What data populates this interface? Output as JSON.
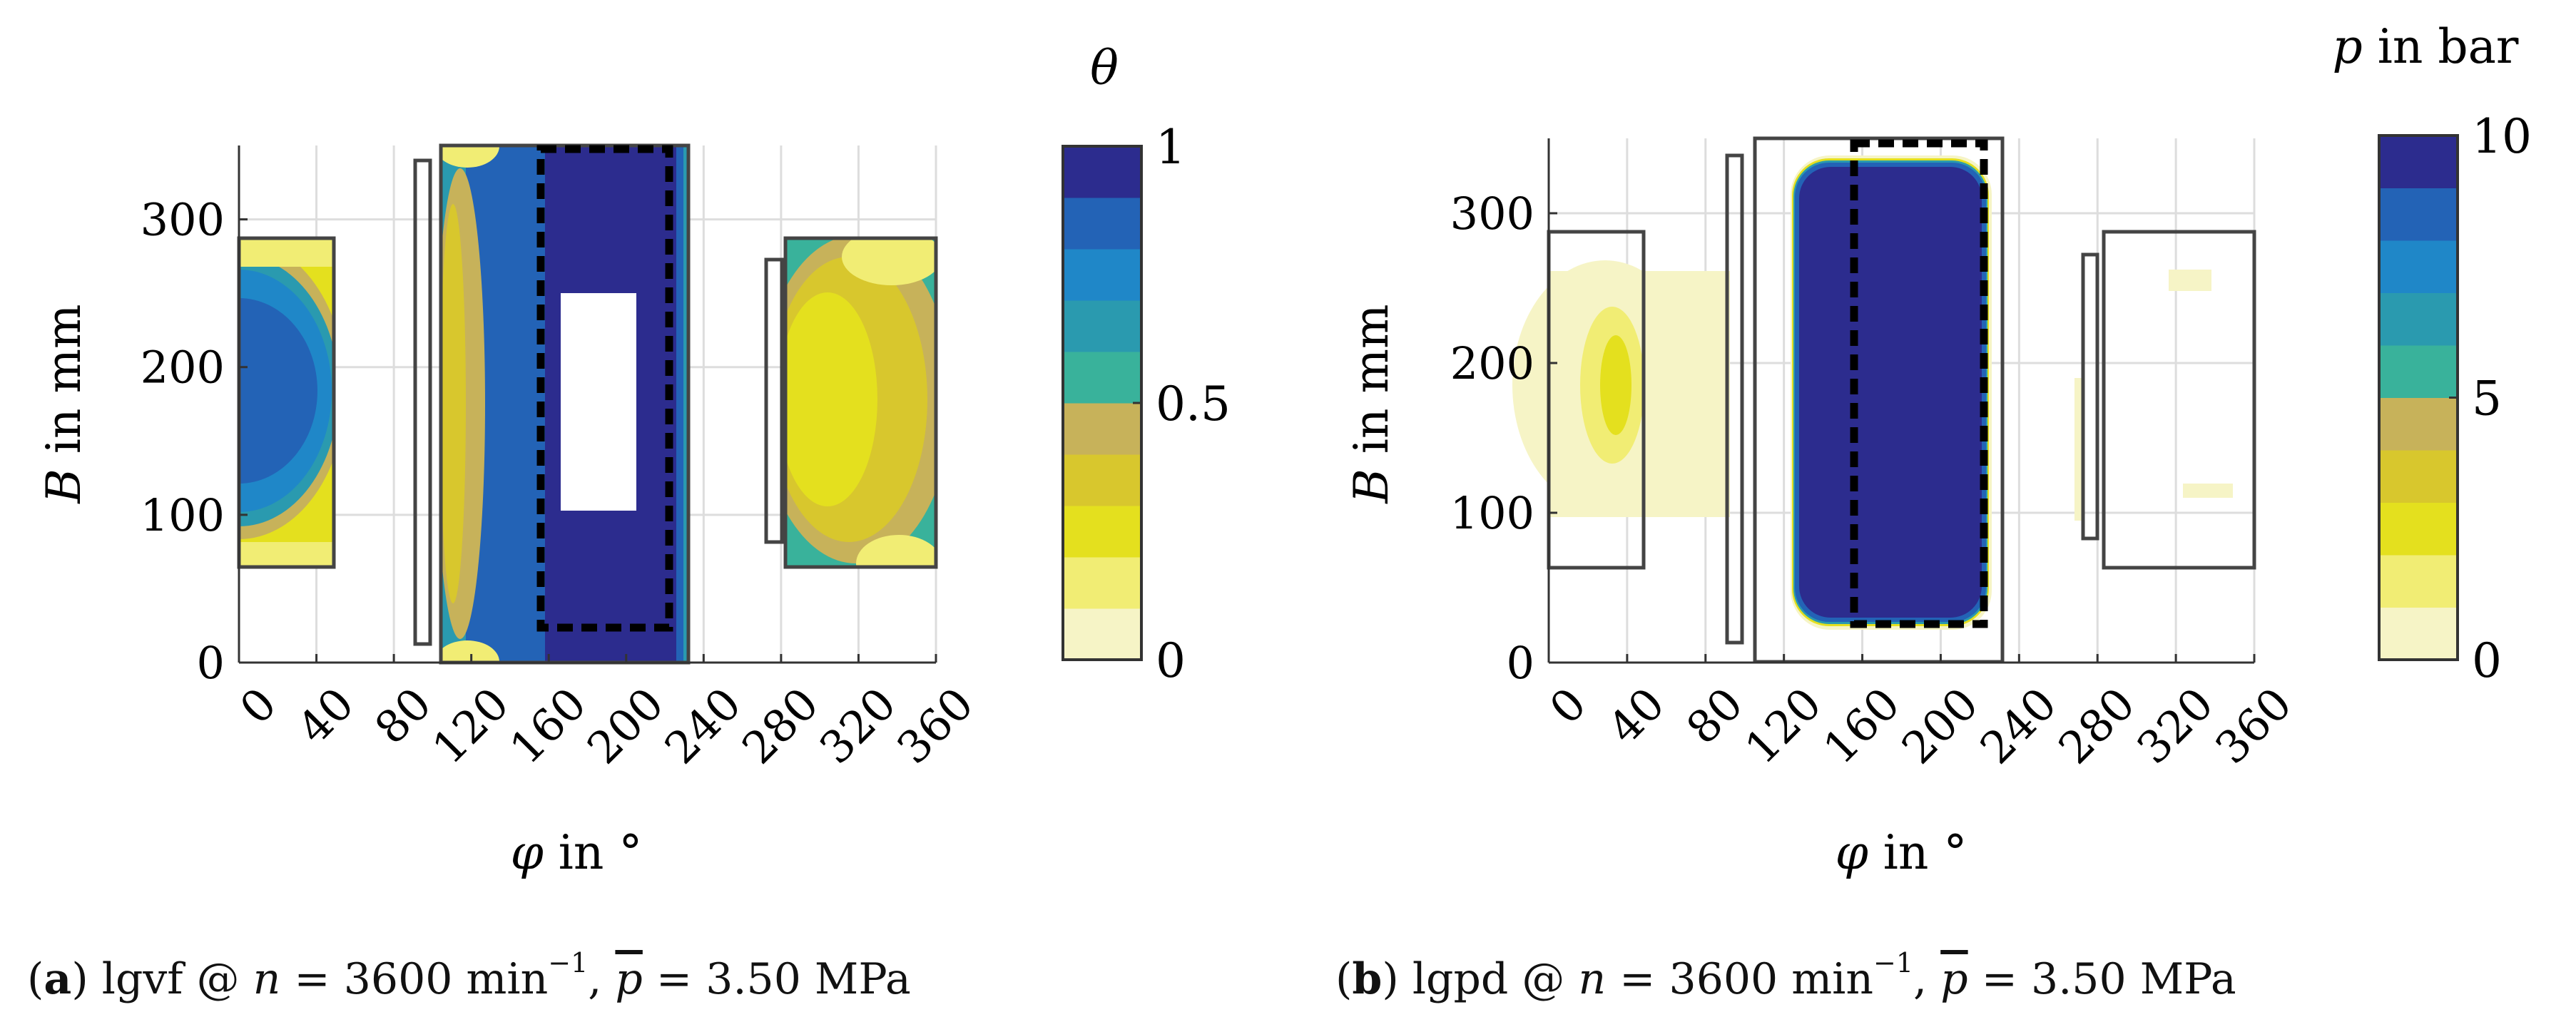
{
  "chart_data": [
    {
      "panel": "a",
      "type": "heatmap",
      "title": "θ",
      "colorbar_label": "θ",
      "xlabel": "φ in °",
      "ylabel": "B in mm",
      "xlim": [
        0,
        360
      ],
      "ylim": [
        0,
        350
      ],
      "xticks": [
        0,
        40,
        80,
        120,
        160,
        200,
        240,
        280,
        320,
        360
      ],
      "yticks": [
        0,
        100,
        200,
        300
      ],
      "colorbar": {
        "min": 0,
        "max": 1,
        "ticks": [
          0,
          0.5,
          1
        ],
        "tick_labels": [
          "0",
          "0.5",
          "1"
        ]
      },
      "caption": {
        "label": "(a)",
        "text": "lgvf @ n = 3600 min−1, p = 3.50 MPa"
      },
      "pockets": [
        {
          "name": "pocket-left",
          "phi": [
            0,
            50
          ],
          "B": [
            63,
            287
          ]
        },
        {
          "name": "groove-1",
          "phi": [
            92,
            100
          ],
          "B": [
            12,
            340
          ]
        },
        {
          "name": "pocket-main",
          "phi": [
            104,
            232
          ],
          "B": [
            0,
            350
          ]
        },
        {
          "name": "groove-2",
          "phi": [
            272,
            280
          ],
          "B": [
            82,
            273
          ]
        },
        {
          "name": "pocket-right",
          "phi": [
            282,
            360
          ],
          "B": [
            63,
            287
          ]
        }
      ],
      "load_zone_dashed": {
        "phi": [
          156,
          223
        ],
        "B": [
          24,
          347
        ]
      },
      "void_region": {
        "phi": [
          168,
          206
        ],
        "B": [
          100,
          250
        ]
      }
    },
    {
      "panel": "b",
      "type": "heatmap",
      "title": "p in bar",
      "colorbar_label": "p in bar",
      "xlabel": "φ in °",
      "ylabel": "B in mm",
      "xlim": [
        0,
        360
      ],
      "ylim": [
        0,
        350
      ],
      "xticks": [
        0,
        40,
        80,
        120,
        160,
        200,
        240,
        280,
        320,
        360
      ],
      "yticks": [
        0,
        100,
        200,
        300
      ],
      "colorbar": {
        "min": 0,
        "max": 10,
        "ticks": [
          0,
          5,
          10
        ],
        "tick_labels": [
          "0",
          "5",
          "10"
        ]
      },
      "caption": {
        "label": "(b)",
        "text": "lgpd @ n = 3600 min−1, p = 3.50 MPa"
      },
      "pockets": [
        {
          "name": "pocket-left",
          "phi": [
            0,
            50
          ],
          "B": [
            63,
            287
          ]
        },
        {
          "name": "groove-1",
          "phi": [
            92,
            100
          ],
          "B": [
            12,
            340
          ]
        },
        {
          "name": "pocket-main",
          "phi": [
            104,
            232
          ],
          "B": [
            0,
            350
          ]
        },
        {
          "name": "groove-2",
          "phi": [
            272,
            280
          ],
          "B": [
            82,
            273
          ]
        },
        {
          "name": "pocket-right",
          "phi": [
            282,
            360
          ],
          "B": [
            63,
            287
          ]
        }
      ],
      "load_zone_dashed": {
        "phi": [
          156,
          228
        ],
        "B": [
          24,
          345
        ]
      },
      "pressure_zone": {
        "phi": [
          124,
          223
        ],
        "B": [
          28,
          342
        ],
        "value": 10
      }
    }
  ],
  "palette": [
    "#f6f4c6",
    "#f1ed74",
    "#e4e01e",
    "#d8c72d",
    "#c7b25a",
    "#39b29b",
    "#2a9aaf",
    "#1f87c8",
    "#2363b6",
    "#2c2c8e"
  ],
  "labels": {
    "a_caption_label": "a",
    "a_caption_name": "lgvf",
    "b_caption_label": "b",
    "b_caption_name": "lgpd",
    "caption_at": "@",
    "caption_n": "n",
    "caption_eq": "= 3600 min",
    "caption_exp": "−1",
    "caption_p": "p",
    "caption_p_val": "= 3.50 MPa"
  }
}
